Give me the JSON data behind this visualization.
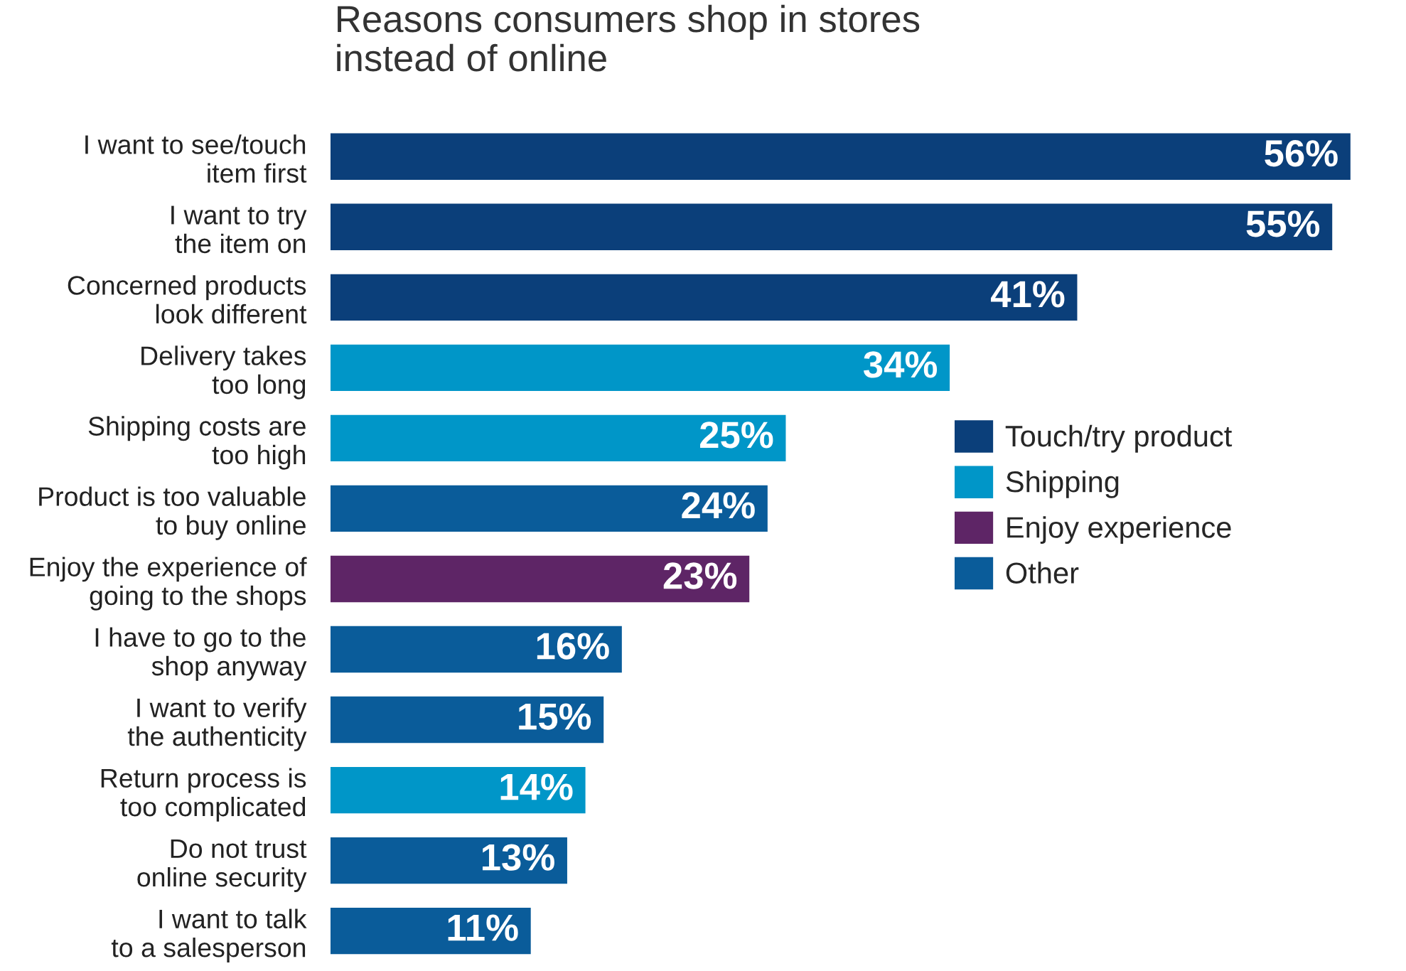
{
  "chart_data": {
    "type": "bar",
    "orientation": "horizontal",
    "title": "Reasons consumers shop in stores\ninstead of online",
    "categories": [
      "I want to see/touch\nitem first",
      "I want to try\nthe item on",
      "Concerned products\nlook different",
      "Delivery takes\ntoo long",
      "Shipping costs are\ntoo high",
      "Product is too valuable\nto buy online",
      "Enjoy the experience of\ngoing to the shops",
      "I have to go to the\nshop anyway",
      "I want to verify\nthe authenticity",
      "Return process is\ntoo complicated",
      "Do not trust\nonline security",
      "I want to talk\nto a salesperson"
    ],
    "series": [
      {
        "name": "Touch/try product",
        "color": "#0b3f7a",
        "values": [
          56,
          55,
          41,
          null,
          null,
          null,
          null,
          null,
          null,
          null,
          null,
          null
        ],
        "value_labels": [
          "56%",
          "55%",
          "41%",
          null,
          null,
          null,
          null,
          null,
          null,
          null,
          null,
          null
        ]
      },
      {
        "name": "Shipping",
        "color": "#0096c8",
        "values": [
          null,
          null,
          null,
          34,
          25,
          null,
          null,
          null,
          null,
          14,
          null,
          null
        ],
        "value_labels": [
          null,
          null,
          null,
          "34%",
          "25%",
          null,
          null,
          null,
          null,
          "14%",
          null,
          null
        ]
      },
      {
        "name": "Enjoy experience",
        "color": "#5e2566",
        "values": [
          null,
          null,
          null,
          null,
          null,
          null,
          23,
          null,
          null,
          null,
          null,
          null
        ],
        "value_labels": [
          null,
          null,
          null,
          null,
          null,
          null,
          "23%",
          null,
          null,
          null,
          null,
          null
        ]
      },
      {
        "name": "Other",
        "color": "#0a5c9a",
        "values": [
          null,
          null,
          null,
          null,
          null,
          24,
          null,
          16,
          15,
          null,
          13,
          11
        ],
        "value_labels": [
          null,
          null,
          null,
          null,
          null,
          "24%",
          null,
          "16%",
          "15%",
          null,
          "13%",
          "11%"
        ]
      }
    ],
    "legend": "right",
    "grid": false
  }
}
